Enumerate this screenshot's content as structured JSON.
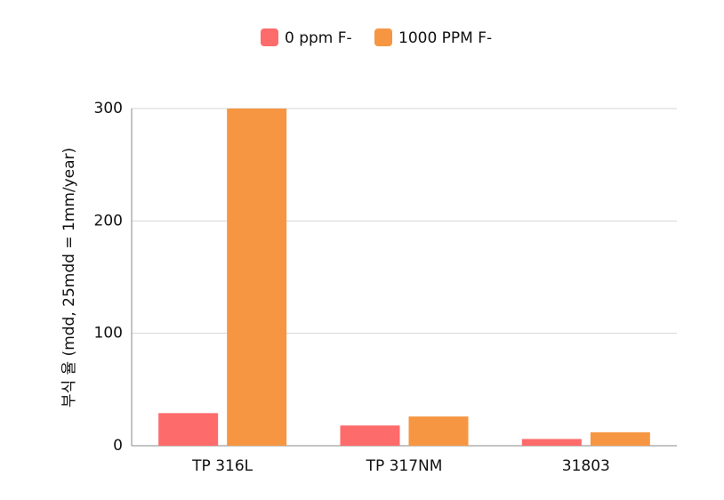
{
  "chart_data": {
    "type": "bar",
    "y_label": "부식 율 (mdd, 25mdd = 1mm/year)",
    "categories": [
      "TP 316L",
      "TP 317NM",
      "31803"
    ],
    "series": [
      {
        "name": "0 ppm F-",
        "color": "#fe6b6b",
        "values": [
          29,
          18,
          6
        ]
      },
      {
        "name": "1000 PPM F-",
        "color": "#f79642",
        "values": [
          300,
          26,
          12
        ]
      }
    ],
    "ylim": [
      0,
      300
    ],
    "yticks": [
      0,
      100,
      200,
      300
    ],
    "grid": true
  }
}
